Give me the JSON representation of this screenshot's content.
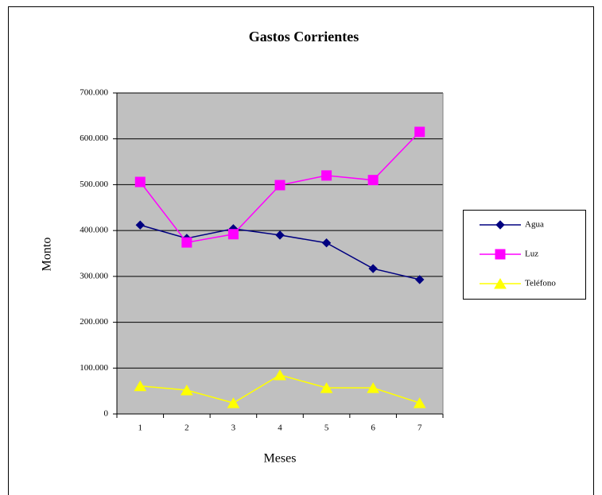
{
  "chart_data": {
    "type": "line",
    "title": "Gastos Corrientes",
    "x_label": "Meses",
    "y_label": "Monto",
    "categories": [
      "1",
      "2",
      "3",
      "4",
      "5",
      "6",
      "7"
    ],
    "series": [
      {
        "name": "Agua",
        "color": "#000080",
        "marker": "diamond",
        "values": [
          412000,
          383000,
          404000,
          390000,
          373000,
          317000,
          293000
        ]
      },
      {
        "name": "Luz",
        "color": "#ff00ff",
        "marker": "square",
        "values": [
          506000,
          374000,
          392000,
          499000,
          520000,
          510000,
          615000
        ]
      },
      {
        "name": "Teléfono",
        "color": "#ffff00",
        "marker": "triangle",
        "values": [
          61000,
          52000,
          24000,
          85000,
          57000,
          57000,
          24000
        ]
      }
    ],
    "ylim": [
      0,
      700000
    ],
    "yticks": [
      0,
      {
        "value": 100000,
        "label": "100.000"
      },
      {
        "value": 200000,
        "label": "200.000"
      },
      {
        "value": 300000,
        "label": "300.000"
      },
      {
        "value": 400000,
        "label": "400.000"
      },
      {
        "value": 500000,
        "label": "500.000"
      },
      {
        "value": 600000,
        "label": "600.000"
      },
      {
        "value": 700000,
        "label": "700.000"
      }
    ],
    "grid": true,
    "legend": "right"
  }
}
